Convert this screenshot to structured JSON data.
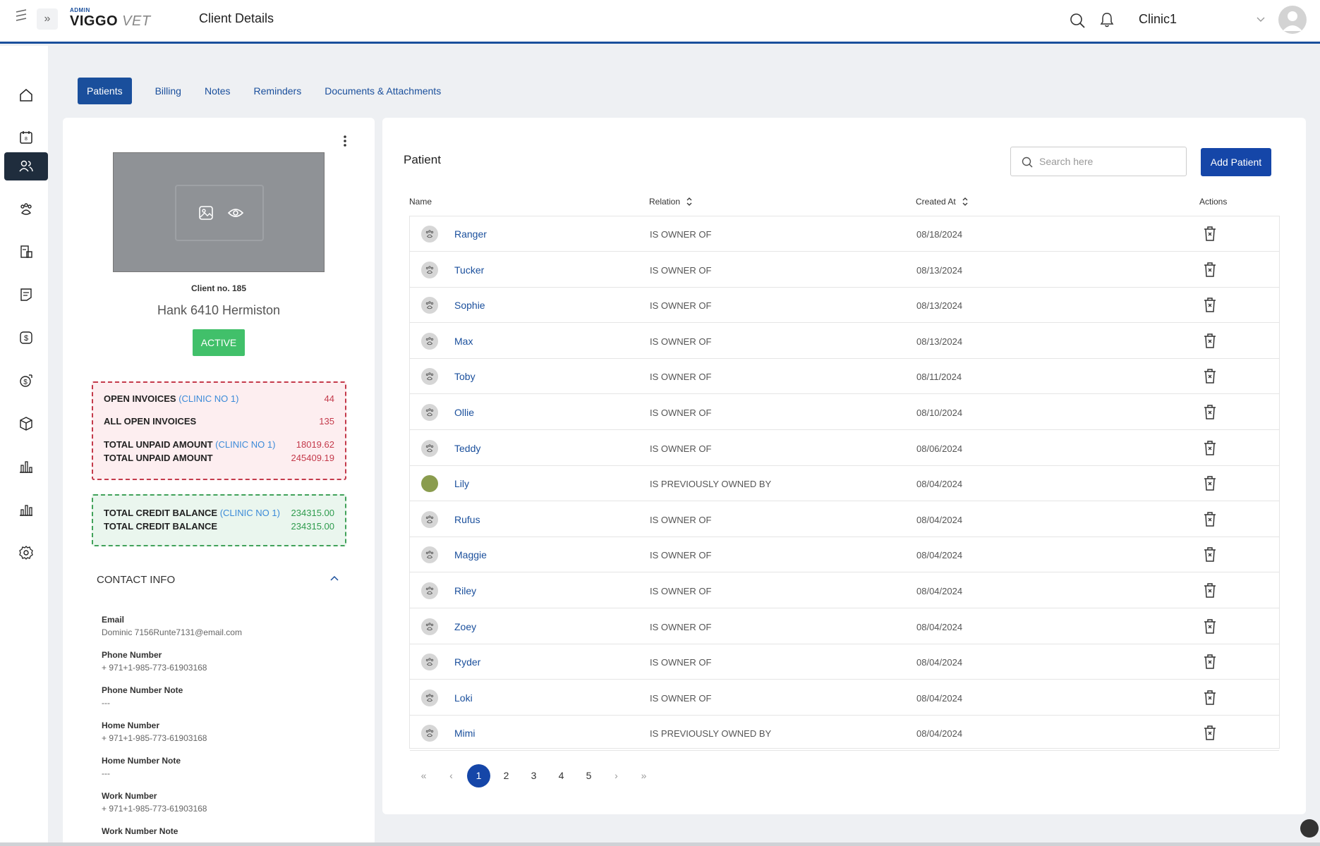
{
  "header": {
    "logo_admin": "ADMIN",
    "logo_brand": "VIGGO",
    "logo_brand_suffix": "VET",
    "title": "Client Details",
    "clinic": "Clinic1"
  },
  "sidebar": {
    "items": [
      {
        "name": "home"
      },
      {
        "name": "calendar"
      },
      {
        "name": "clients",
        "active": true
      },
      {
        "name": "patients"
      },
      {
        "name": "inventory"
      },
      {
        "name": "notes"
      },
      {
        "name": "billing"
      },
      {
        "name": "payments"
      },
      {
        "name": "products"
      },
      {
        "name": "reports"
      },
      {
        "name": "analytics"
      },
      {
        "name": "settings"
      }
    ]
  },
  "tabs": [
    "Patients",
    "Billing",
    "Notes",
    "Reminders",
    "Documents & Attachments"
  ],
  "client": {
    "number": "Client no. 185",
    "name": "Hank 6410 Hermiston",
    "status": "ACTIVE"
  },
  "invoices": {
    "open_clinic_label": "OPEN INVOICES",
    "clinic_tag": "(CLINIC NO 1)",
    "open_clinic_value": "44",
    "all_open_label": "ALL OPEN INVOICES",
    "all_open_value": "135",
    "unpaid_clinic_label": "TOTAL UNPAID AMOUNT",
    "unpaid_clinic_value": "18019.62",
    "unpaid_total_label": "TOTAL UNPAID AMOUNT",
    "unpaid_total_value": "245409.19"
  },
  "credit": {
    "clinic_label": "TOTAL CREDIT BALANCE",
    "clinic_tag": "(CLINIC NO 1)",
    "clinic_value": "234315.00",
    "total_label": "TOTAL CREDIT BALANCE",
    "total_value": "234315.00"
  },
  "contact": {
    "header": "CONTACT INFO",
    "fields": [
      {
        "label": "Email",
        "value": "Dominic 7156Runte7131@email.com"
      },
      {
        "label": "Phone Number",
        "value": "+ 971+1-985-773-61903168"
      },
      {
        "label": "Phone Number Note",
        "value": "---"
      },
      {
        "label": "Home Number",
        "value": "+ 971+1-985-773-61903168"
      },
      {
        "label": "Home Number Note",
        "value": "---"
      },
      {
        "label": "Work Number",
        "value": "+ 971+1-985-773-61903168"
      },
      {
        "label": "Work Number Note",
        "value": "---"
      }
    ]
  },
  "patient_panel": {
    "title": "Patient",
    "search_placeholder": "Search here",
    "add_button": "Add Patient",
    "columns": {
      "name": "Name",
      "relation": "Relation",
      "created": "Created At",
      "actions": "Actions"
    },
    "rows": [
      {
        "name": "Ranger",
        "relation": "IS OWNER OF",
        "created": "08/18/2024"
      },
      {
        "name": "Tucker",
        "relation": "IS OWNER OF",
        "created": "08/13/2024"
      },
      {
        "name": "Sophie",
        "relation": "IS OWNER OF",
        "created": "08/13/2024"
      },
      {
        "name": "Max",
        "relation": "IS OWNER OF",
        "created": "08/13/2024"
      },
      {
        "name": "Toby",
        "relation": "IS OWNER OF",
        "created": "08/11/2024"
      },
      {
        "name": "Ollie",
        "relation": "IS OWNER OF",
        "created": "08/10/2024"
      },
      {
        "name": "Teddy",
        "relation": "IS OWNER OF",
        "created": "08/06/2024"
      },
      {
        "name": "Lily",
        "relation": "IS PREVIOUSLY OWNED BY",
        "created": "08/04/2024",
        "photo": true
      },
      {
        "name": "Rufus",
        "relation": "IS OWNER OF",
        "created": "08/04/2024"
      },
      {
        "name": "Maggie",
        "relation": "IS OWNER OF",
        "created": "08/04/2024"
      },
      {
        "name": "Riley",
        "relation": "IS OWNER OF",
        "created": "08/04/2024"
      },
      {
        "name": "Zoey",
        "relation": "IS OWNER OF",
        "created": "08/04/2024"
      },
      {
        "name": "Ryder",
        "relation": "IS OWNER OF",
        "created": "08/04/2024"
      },
      {
        "name": "Loki",
        "relation": "IS OWNER OF",
        "created": "08/04/2024"
      },
      {
        "name": "Mimi",
        "relation": "IS PREVIOUSLY OWNED BY",
        "created": "08/04/2024"
      }
    ],
    "pagination": {
      "first": "«",
      "prev": "‹",
      "pages": [
        "1",
        "2",
        "3",
        "4",
        "5"
      ],
      "current": "1",
      "next": "›",
      "last": "»"
    }
  },
  "colors": {
    "primary": "#1546a8",
    "active_badge": "#41c06a",
    "danger": "#c43a4b",
    "success": "#2e9b4d",
    "sidebar_active": "#1f2d3d"
  }
}
